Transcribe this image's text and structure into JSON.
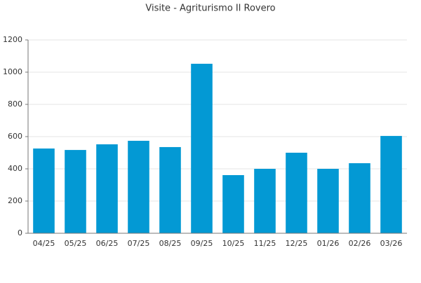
{
  "chart_data": {
    "type": "bar",
    "title": "Visite - Agriturismo Il Rovero",
    "categories": [
      "04/25",
      "05/25",
      "06/25",
      "07/25",
      "08/25",
      "09/25",
      "10/25",
      "11/25",
      "12/25",
      "01/26",
      "02/26",
      "03/26"
    ],
    "values": [
      526,
      517,
      552,
      574,
      535,
      1052,
      361,
      400,
      500,
      400,
      435,
      604
    ],
    "color": "#0399d4",
    "ylim": [
      0,
      1200
    ],
    "yticks": [
      0,
      200,
      400,
      600,
      800,
      1000,
      1200
    ],
    "grid": true
  }
}
